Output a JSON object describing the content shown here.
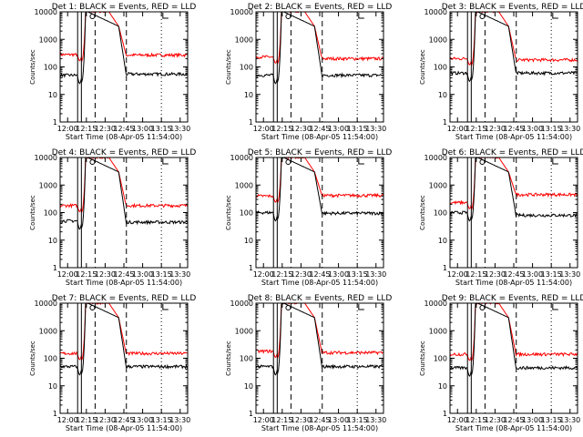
{
  "chart_data": {
    "type": "line",
    "layout": "3x3 grid",
    "scale_y": "log",
    "ylim": [
      1,
      10000
    ],
    "y_ticks": [
      "1",
      "10",
      "100",
      "1000",
      "10000"
    ],
    "xlim_hours": [
      11.9,
      13.6
    ],
    "x_ticks": [
      "12:00",
      "12:15",
      "12:30",
      "12:45",
      "13:00",
      "13:15",
      "13:30"
    ],
    "xlabel": "Start Time (08-Apr-05 11:54:00)",
    "ylabel": "Counts/sec",
    "colors": {
      "events": "#000000",
      "lld": "#ff0000"
    },
    "marker_lines": {
      "solid": [
        "12:08",
        "12:11"
      ],
      "dashed": [
        "12:22",
        "12:47"
      ],
      "dotted": [
        "13:15"
      ]
    },
    "panels": [
      {
        "title": "Det 1: BLACK = Events, RED = LLD",
        "black_base": 50,
        "red_base": 280,
        "black_after": 55,
        "red_after": 270
      },
      {
        "title": "Det 2: BLACK = Events, RED = LLD",
        "black_base": 50,
        "red_base": 230,
        "black_after": 50,
        "red_after": 200
      },
      {
        "title": "Det 3: BLACK = Events, RED = LLD",
        "black_base": 60,
        "red_base": 200,
        "black_after": 60,
        "red_after": 180
      },
      {
        "title": "Det 4: BLACK = Events, RED = LLD",
        "black_base": 50,
        "red_base": 180,
        "black_after": 45,
        "red_after": 180
      },
      {
        "title": "Det 5: BLACK = Events, RED = LLD",
        "black_base": 100,
        "red_base": 400,
        "black_after": 95,
        "red_after": 420
      },
      {
        "title": "Det 6: BLACK = Events, RED = LLD",
        "black_base": 100,
        "red_base": 230,
        "black_after": 80,
        "red_after": 450
      },
      {
        "title": "Det 7: BLACK = Events, RED = LLD",
        "black_base": 50,
        "red_base": 150,
        "black_after": 50,
        "red_after": 150
      },
      {
        "title": "Det 8: BLACK = Events, RED = LLD",
        "black_base": 50,
        "red_base": 180,
        "black_after": 50,
        "red_after": 160
      },
      {
        "title": "Det 9: BLACK = Events, RED = LLD",
        "black_base": 45,
        "red_base": 140,
        "black_after": 45,
        "red_after": 140
      }
    ]
  }
}
